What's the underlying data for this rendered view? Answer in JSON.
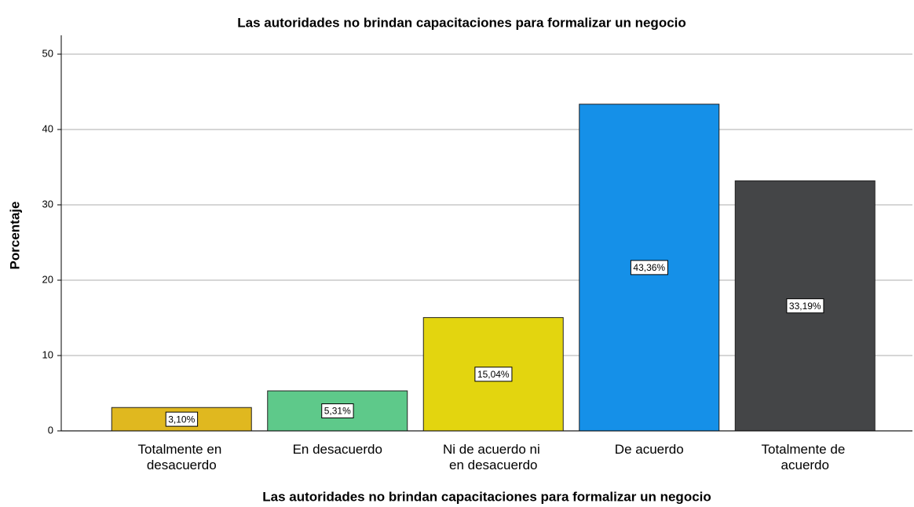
{
  "chart_data": {
    "type": "bar",
    "title": "Las autoridades no brindan capacitaciones para formalizar un negocio",
    "x_label": "Las autoridades no brindan capacitaciones para formalizar un negocio",
    "y_label": "Porcentaje",
    "categories": [
      "Totalmente en desacuerdo",
      "En desacuerdo",
      "Ni de acuerdo ni en desacuerdo",
      "De acuerdo",
      "Totalmente de acuerdo"
    ],
    "values": [
      3.1,
      5.31,
      15.04,
      43.36,
      33.19
    ],
    "value_labels": [
      "3,10%",
      "5,31%",
      "15,04%",
      "43,36%",
      "33,19%"
    ],
    "colors": [
      "#e0b81f",
      "#5ec98a",
      "#e3d50f",
      "#1590e8",
      "#444547"
    ],
    "ylim": [
      0,
      52.5
    ],
    "yticks": [
      0,
      10,
      20,
      30,
      40,
      50
    ],
    "grid": true
  }
}
